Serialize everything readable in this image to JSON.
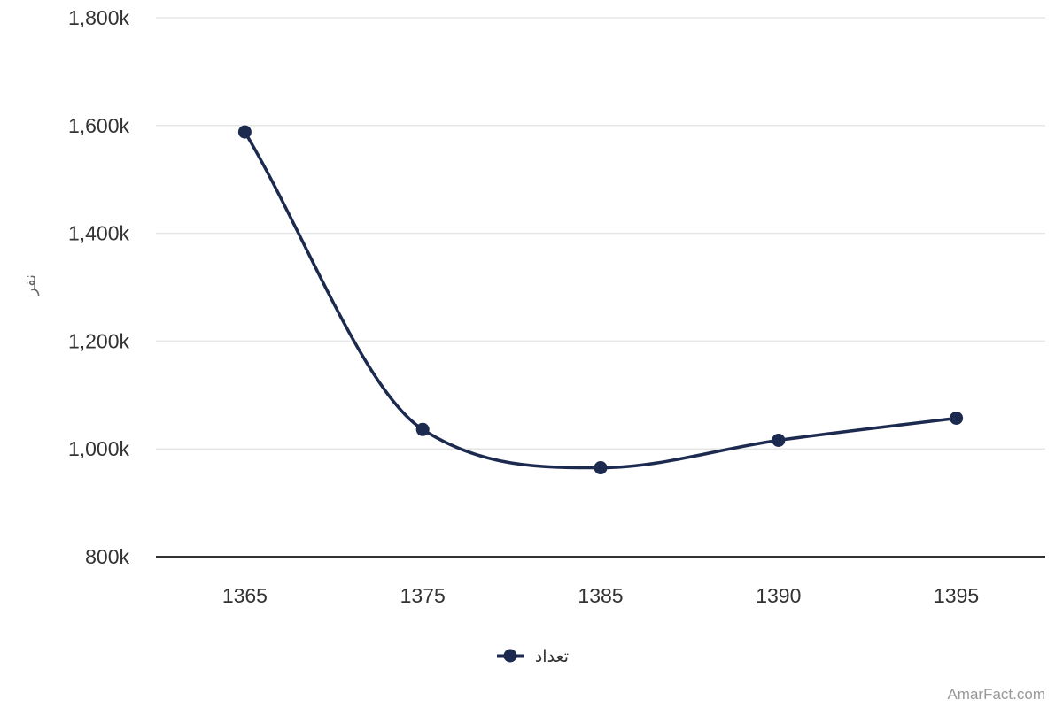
{
  "chart_data": {
    "type": "line",
    "categories": [
      "1365",
      "1375",
      "1385",
      "1390",
      "1395"
    ],
    "series": [
      {
        "name": "تعداد",
        "values": [
          1588000,
          1036000,
          965000,
          1016000,
          1057000
        ],
        "color": "#1b2a4e"
      }
    ],
    "ylabel": "نفر",
    "xlabel": "",
    "ylim": [
      800000,
      1800000
    ],
    "yticks": [
      800000,
      1000000,
      1200000,
      1400000,
      1600000,
      1800000
    ],
    "ytick_labels": [
      "800k",
      "1,000k",
      "1,200k",
      "1,400k",
      "1,600k",
      "1,800k"
    ],
    "grid": true,
    "legend_position": "bottom-center",
    "smooth": true
  },
  "credit": "AmarFact.com",
  "colors": {
    "series": "#1b2a4e",
    "grid": "#e6e6e6",
    "axis": "#333333",
    "text": "#333333"
  }
}
